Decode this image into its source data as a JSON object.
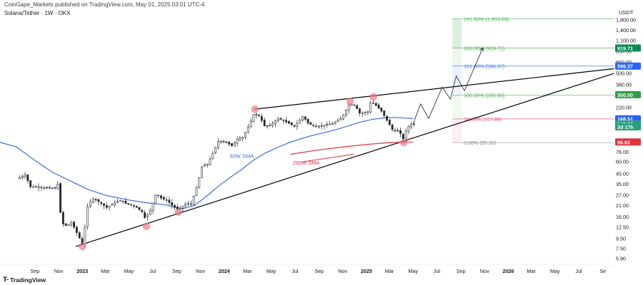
{
  "header": {
    "published": "CoinGape_Markets published on TradingView.com, May 01, 2025 03:01 UTC-4",
    "symbol": "Solana/Tether · 1W · OKX"
  },
  "footer": {
    "brand": "TradingView"
  },
  "colors": {
    "candle": "#22272e",
    "sma50": "#3a6fd8",
    "sma200": "#e0323c",
    "trend": "#000000",
    "fib_green": "#4caf50",
    "fib_blue": "#3f7be0",
    "fib_pink": "#e05c7a",
    "pivot": "#ef6f7e"
  },
  "chart_data": {
    "type": "candlestick",
    "y_scale": "log",
    "y_unit": "USDT",
    "y_ticks": [
      1800,
      1400,
      1100,
      850,
      650,
      500,
      380,
      220,
      100,
      76,
      60,
      45,
      35,
      27,
      21,
      16,
      12.5,
      9.5,
      7.5,
      5.9
    ],
    "y_tick_labels": [
      "1,800.00",
      "1,400.00",
      "1,100.00",
      "850.00",
      "650.00",
      "500.00",
      "380.00",
      "220.00",
      "100.00",
      "76.00",
      "60.00",
      "45.00",
      "35.00",
      "27.00",
      "21.00",
      "16.00",
      "12.50",
      "9.50",
      "7.50",
      "5.90"
    ],
    "x_ticks": [
      {
        "date": "2022-09",
        "label": "Sep"
      },
      {
        "date": "2022-11",
        "label": "Nov"
      },
      {
        "date": "2023-01",
        "label": "2023"
      },
      {
        "date": "2023-03",
        "label": "Mar"
      },
      {
        "date": "2023-05",
        "label": "May"
      },
      {
        "date": "2023-07",
        "label": "Jul"
      },
      {
        "date": "2023-09",
        "label": "Sep"
      },
      {
        "date": "2023-11",
        "label": "Nov"
      },
      {
        "date": "2024-01",
        "label": "2024"
      },
      {
        "date": "2024-03",
        "label": "Mar"
      },
      {
        "date": "2024-05",
        "label": "May"
      },
      {
        "date": "2024-07",
        "label": "Jul"
      },
      {
        "date": "2024-09",
        "label": "Sep"
      },
      {
        "date": "2024-11",
        "label": "Nov"
      },
      {
        "date": "2025-01",
        "label": "2025"
      },
      {
        "date": "2025-03",
        "label": "Mar"
      },
      {
        "date": "2025-05",
        "label": "May"
      },
      {
        "date": "2025-07",
        "label": "Jul"
      },
      {
        "date": "2025-09",
        "label": "Sep"
      },
      {
        "date": "2025-11",
        "label": "Nov"
      },
      {
        "date": "2026-01",
        "label": "2026"
      },
      {
        "date": "2026-03",
        "label": "Mar"
      },
      {
        "date": "2026-05",
        "label": "May"
      },
      {
        "date": "2026-07",
        "label": "Jul"
      },
      {
        "date": "2026-09",
        "label": "Se"
      }
    ],
    "price_path": [
      [
        "2022-07-20",
        40
      ],
      [
        "2022-08-10",
        44
      ],
      [
        "2022-08-24",
        33
      ],
      [
        "2022-09-14",
        33
      ],
      [
        "2022-10-05",
        32
      ],
      [
        "2022-10-26",
        32
      ],
      [
        "2022-11-06",
        37
      ],
      [
        "2022-11-10",
        14
      ],
      [
        "2022-11-24",
        13
      ],
      [
        "2022-12-08",
        14
      ],
      [
        "2022-12-29",
        9.5
      ],
      [
        "2023-01-05",
        8.2
      ],
      [
        "2023-01-19",
        22
      ],
      [
        "2023-02-02",
        25
      ],
      [
        "2023-02-16",
        23
      ],
      [
        "2023-03-09",
        20
      ],
      [
        "2023-03-23",
        22
      ],
      [
        "2023-04-13",
        24
      ],
      [
        "2023-04-27",
        22
      ],
      [
        "2023-05-18",
        21
      ],
      [
        "2023-06-08",
        18
      ],
      [
        "2023-06-15",
        15.5
      ],
      [
        "2023-06-29",
        19
      ],
      [
        "2023-07-13",
        28
      ],
      [
        "2023-07-27",
        25
      ],
      [
        "2023-08-10",
        24
      ],
      [
        "2023-08-24",
        21
      ],
      [
        "2023-09-07",
        19
      ],
      [
        "2023-09-28",
        22
      ],
      [
        "2023-10-12",
        22
      ],
      [
        "2023-10-26",
        33
      ],
      [
        "2023-11-09",
        55
      ],
      [
        "2023-11-23",
        57
      ],
      [
        "2023-12-07",
        75
      ],
      [
        "2023-12-21",
        100
      ],
      [
        "2024-01-04",
        98
      ],
      [
        "2024-01-25",
        88
      ],
      [
        "2024-02-08",
        105
      ],
      [
        "2024-02-22",
        108
      ],
      [
        "2024-03-07",
        140
      ],
      [
        "2024-03-21",
        190
      ],
      [
        "2024-04-04",
        180
      ],
      [
        "2024-04-18",
        140
      ],
      [
        "2024-05-02",
        145
      ],
      [
        "2024-05-23",
        170
      ],
      [
        "2024-06-13",
        155
      ],
      [
        "2024-07-04",
        140
      ],
      [
        "2024-07-25",
        180
      ],
      [
        "2024-08-08",
        150
      ],
      [
        "2024-08-29",
        140
      ],
      [
        "2024-09-19",
        145
      ],
      [
        "2024-10-10",
        150
      ],
      [
        "2024-10-31",
        170
      ],
      [
        "2024-11-14",
        210
      ],
      [
        "2024-11-21",
        240
      ],
      [
        "2024-12-05",
        235
      ],
      [
        "2024-12-19",
        190
      ],
      [
        "2025-01-09",
        200
      ],
      [
        "2025-01-16",
        255
      ],
      [
        "2025-01-30",
        230
      ],
      [
        "2025-02-13",
        200
      ],
      [
        "2025-02-27",
        160
      ],
      [
        "2025-03-13",
        128
      ],
      [
        "2025-03-27",
        125
      ],
      [
        "2025-04-03",
        117
      ],
      [
        "2025-04-10",
        102
      ],
      [
        "2025-04-17",
        130
      ],
      [
        "2025-04-24",
        142
      ],
      [
        "2025-05-01",
        148.5
      ]
    ],
    "series": [
      {
        "name": "50W SMA",
        "points": [
          [
            "2022-06-02",
            96
          ],
          [
            "2022-07-15",
            86
          ],
          [
            "2022-09-01",
            62
          ],
          [
            "2022-10-15",
            47
          ],
          [
            "2022-12-01",
            38
          ],
          [
            "2023-01-15",
            31
          ],
          [
            "2023-03-01",
            27
          ],
          [
            "2023-05-01",
            24
          ],
          [
            "2023-06-15",
            22.5
          ],
          [
            "2023-08-01",
            21.5
          ],
          [
            "2023-09-15",
            19.5
          ],
          [
            "2023-10-15",
            21
          ],
          [
            "2023-11-15",
            26
          ],
          [
            "2023-12-15",
            33
          ],
          [
            "2024-01-15",
            41
          ],
          [
            "2024-02-15",
            50
          ],
          [
            "2024-03-15",
            62
          ],
          [
            "2024-04-15",
            74
          ],
          [
            "2024-05-15",
            84
          ],
          [
            "2024-06-15",
            95
          ],
          [
            "2024-07-15",
            104
          ],
          [
            "2024-08-15",
            113
          ],
          [
            "2024-09-15",
            121
          ],
          [
            "2024-10-15",
            130
          ],
          [
            "2024-11-15",
            142
          ],
          [
            "2024-12-15",
            155
          ],
          [
            "2025-01-15",
            166
          ],
          [
            "2025-02-15",
            172
          ],
          [
            "2025-03-15",
            174
          ],
          [
            "2025-04-15",
            171
          ],
          [
            "2025-05-01",
            169
          ]
        ]
      },
      {
        "name": "200W SMA",
        "points": [
          [
            "2024-06-20",
            72
          ],
          [
            "2024-09-01",
            80
          ],
          [
            "2024-11-15",
            87
          ],
          [
            "2025-01-15",
            92
          ],
          [
            "2025-03-01",
            95.3
          ],
          [
            "2025-04-15",
            96.6
          ],
          [
            "2025-05-01",
            96.6
          ]
        ]
      }
    ],
    "trendlines": [
      {
        "name": "support",
        "from": [
          "2022-12-15",
          7.9
        ],
        "to": [
          "2026-09-30",
          500
        ]
      },
      {
        "name": "resistance",
        "from": [
          "2024-03-20",
          212
        ],
        "to": [
          "2026-09-30",
          560
        ]
      }
    ],
    "projection": [
      [
        "2025-05-01",
        148.5
      ],
      [
        "2025-05-20",
        240
      ],
      [
        "2025-06-10",
        170
      ],
      [
        "2025-07-15",
        360
      ],
      [
        "2025-08-05",
        270
      ],
      [
        "2025-08-20",
        470
      ],
      [
        "2025-09-10",
        330
      ],
      [
        "2025-10-28",
        930
      ]
    ],
    "pivots": [
      [
        "2023-01-01",
        7.9
      ],
      [
        "2023-06-15",
        12.8
      ],
      [
        "2023-09-05",
        18
      ],
      [
        "2024-03-20",
        212
      ],
      [
        "2024-11-20",
        255
      ],
      [
        "2025-01-19",
        285
      ],
      [
        "2025-04-07",
        95.2
      ]
    ],
    "fib_levels": [
      {
        "label": "261.80% (1,853.63)",
        "value": 1853.63,
        "color": "#4caf50"
      },
      {
        "label": "200.00% (919.71)",
        "value": 919.71,
        "color": "#4caf50"
      },
      {
        "label": "161.80% (596.37)",
        "value": 596.37,
        "color": "#3f7be0"
      },
      {
        "label": "100.00% (295.90)",
        "value": 295.9,
        "color": "#4caf50"
      },
      {
        "label": "50.00% (167.84)",
        "value": 167.84,
        "color": "#e05c7a"
      },
      {
        "label": "0.00% (95.20)",
        "value": 95.2,
        "color": "#888888"
      }
    ],
    "annotations": [
      {
        "text": "50W SMA",
        "date": "2024-01-15",
        "value": 66
      },
      {
        "text": "200W SMA",
        "date": "2024-06-25",
        "value": 56
      }
    ],
    "price_tags": [
      {
        "label": "919.71",
        "value": 919.71,
        "bg": "#0a8a55"
      },
      {
        "label": "596.37",
        "value": 596.37,
        "bg": "#2962ff"
      },
      {
        "label": "300.00",
        "value": 300,
        "bg": "#2f9e44"
      },
      {
        "label": "168.51",
        "value": 168.51,
        "bg": "#2962ff"
      },
      {
        "label": "148.50",
        "value": 148.5,
        "bg": "#26a17b"
      },
      {
        "label": "3d 17h",
        "value": 139,
        "bg": "#26a17b"
      },
      {
        "label": "96.63",
        "value": 96.63,
        "bg": "#e0323c"
      }
    ]
  }
}
